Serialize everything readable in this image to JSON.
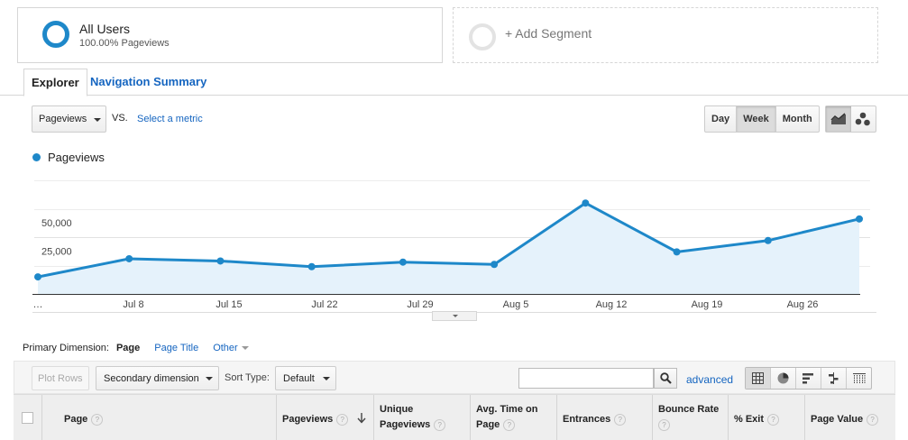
{
  "segments": {
    "active": {
      "name": "All Users",
      "detail": "100.00% Pageviews"
    },
    "add_label": "+ Add Segment"
  },
  "tabs": [
    {
      "label": "Explorer",
      "active": true
    },
    {
      "label": "Navigation Summary",
      "active": false
    }
  ],
  "controls": {
    "metric": "Pageviews",
    "vs": "VS.",
    "select_metric": "Select a metric",
    "periods": [
      "Day",
      "Week",
      "Month"
    ],
    "active_period": "Week",
    "chart_types": [
      {
        "icon": "line-chart-icon",
        "active": true
      },
      {
        "icon": "motion-chart-icon",
        "active": false
      }
    ]
  },
  "chart_data": {
    "type": "area",
    "series": [
      {
        "name": "Pageviews",
        "color": "#1e88c9",
        "values": [
          15000,
          31000,
          29000,
          24000,
          28000,
          26000,
          80000,
          37000,
          47000,
          66000
        ]
      }
    ],
    "x_tick_labels": [
      "…",
      "Jul 8",
      "Jul 15",
      "Jul 22",
      "Jul 29",
      "Aug 5",
      "Aug 12",
      "Aug 19",
      "Aug 26"
    ],
    "y_tick_labels": [
      "50,000",
      "25,000"
    ],
    "ylim": [
      0,
      100000
    ],
    "grid": true,
    "legend": "top-left"
  },
  "primary_dimension": {
    "label": "Primary Dimension:",
    "options": [
      {
        "label": "Page",
        "active": true
      },
      {
        "label": "Page Title",
        "active": false
      },
      {
        "label": "Other",
        "active": false,
        "dropdown": true
      }
    ]
  },
  "toolbar": {
    "plot_rows": "Plot Rows",
    "secondary_dimension": "Secondary dimension",
    "sort_type_label": "Sort Type:",
    "sort_type_value": "Default",
    "search_value": "",
    "advanced": "advanced",
    "views": [
      "data-table-icon",
      "pie-chart-icon",
      "performance-icon",
      "comparison-icon",
      "pivot-icon"
    ],
    "active_view": "data-table-icon"
  },
  "table": {
    "columns": [
      {
        "lines": [
          "Page"
        ],
        "help": "?"
      },
      {
        "lines": [
          "Pageviews"
        ],
        "help": "?",
        "sorted": "desc"
      },
      {
        "lines": [
          "Unique",
          "Pageviews"
        ],
        "help": "?"
      },
      {
        "lines": [
          "Avg. Time on",
          "Page"
        ],
        "help": "?"
      },
      {
        "lines": [
          "Entrances"
        ],
        "help": "?"
      },
      {
        "lines": [
          "Bounce Rate"
        ],
        "help": "?"
      },
      {
        "lines": [
          "% Exit"
        ],
        "help": "?"
      },
      {
        "lines": [
          "Page Value"
        ],
        "help": "?"
      }
    ]
  }
}
